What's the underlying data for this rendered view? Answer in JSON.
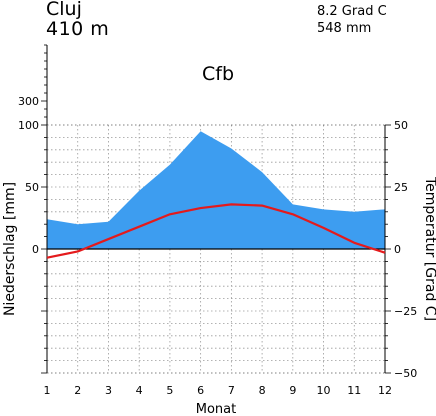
{
  "header": {
    "station": "Cluj",
    "elevation": "410  m",
    "mean_temperature": "8.2 Grad C",
    "annual_precipitation": "548 mm"
  },
  "chart_data": {
    "type": "area",
    "title": "Cfb",
    "xlabel": "Monat",
    "ylabel_left": "Niederschlag [mm]",
    "ylabel_right": "Temperatur [Grad C]",
    "x": [
      1,
      2,
      3,
      4,
      5,
      6,
      7,
      8,
      9,
      10,
      11,
      12
    ],
    "xlim": [
      1,
      12
    ],
    "left_axis": {
      "range": [
        -100,
        100
      ],
      "ticks": [
        0,
        50,
        100
      ],
      "extra_ticks": [
        300
      ]
    },
    "right_axis": {
      "range": [
        -50,
        50
      ],
      "ticks": [
        -50,
        -25,
        0,
        25,
        50
      ]
    },
    "grid": true,
    "series": [
      {
        "kind": "precipitation-area",
        "axis": "left",
        "color": "#3d9df0",
        "values": [
          24,
          20,
          22,
          47,
          68,
          95,
          81,
          62,
          36,
          32,
          30,
          32
        ]
      },
      {
        "kind": "temperature-line",
        "axis": "right",
        "color": "#e41a1c",
        "values": [
          -3.5,
          -1,
          4,
          9,
          14,
          16.5,
          18,
          17.5,
          14,
          8.5,
          2.5,
          -1.5
        ]
      }
    ]
  }
}
